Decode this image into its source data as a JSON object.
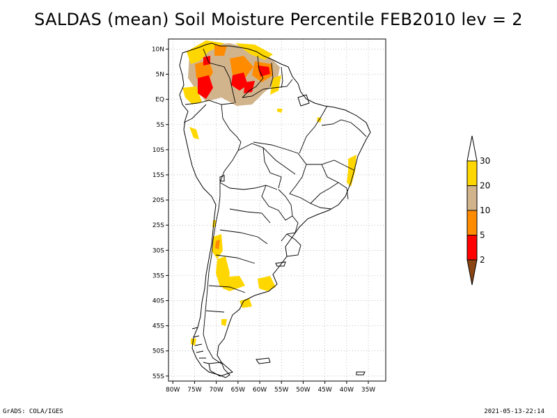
{
  "title": "SALDAS (mean) Soil Moisture Percentile FEB2010 lev = 2",
  "footer": {
    "left": "GrADS: COLA/IGES",
    "right": "2021-05-13-22:14"
  },
  "map": {
    "lon_range": [
      -81,
      -31
    ],
    "lat_range": [
      -56,
      12
    ],
    "lon_ticks": [
      {
        "value": -80,
        "label": "80W"
      },
      {
        "value": -75,
        "label": "75W"
      },
      {
        "value": -70,
        "label": "70W"
      },
      {
        "value": -65,
        "label": "65W"
      },
      {
        "value": -60,
        "label": "60W"
      },
      {
        "value": -55,
        "label": "55W"
      },
      {
        "value": -50,
        "label": "50W"
      },
      {
        "value": -45,
        "label": "45W"
      },
      {
        "value": -40,
        "label": "40W"
      },
      {
        "value": -35,
        "label": "35W"
      }
    ],
    "lat_ticks": [
      {
        "value": 10,
        "label": "10N"
      },
      {
        "value": 5,
        "label": "5N"
      },
      {
        "value": 0,
        "label": "EQ"
      },
      {
        "value": -5,
        "label": "5S"
      },
      {
        "value": -10,
        "label": "10S"
      },
      {
        "value": -15,
        "label": "15S"
      },
      {
        "value": -20,
        "label": "20S"
      },
      {
        "value": -25,
        "label": "25S"
      },
      {
        "value": -30,
        "label": "30S"
      },
      {
        "value": -35,
        "label": "35S"
      },
      {
        "value": -40,
        "label": "40S"
      },
      {
        "value": -45,
        "label": "45S"
      },
      {
        "value": -50,
        "label": "50S"
      },
      {
        "value": -55,
        "label": "55S"
      }
    ]
  },
  "legend": {
    "bins": [
      {
        "label": "2",
        "color": "#8b4513"
      },
      {
        "label": "5",
        "color": "#ff0000"
      },
      {
        "label": "10",
        "color": "#ff8c00"
      },
      {
        "label": "20",
        "color": "#d2b48c"
      },
      {
        "label": "30",
        "color": "#ffd700"
      }
    ],
    "labels": [
      "2",
      "5",
      "10",
      "20",
      "30"
    ],
    "cap_color": "#ffffff"
  },
  "colors": {
    "frame": "#000000",
    "coast": "#000000",
    "grid": "#999999"
  }
}
